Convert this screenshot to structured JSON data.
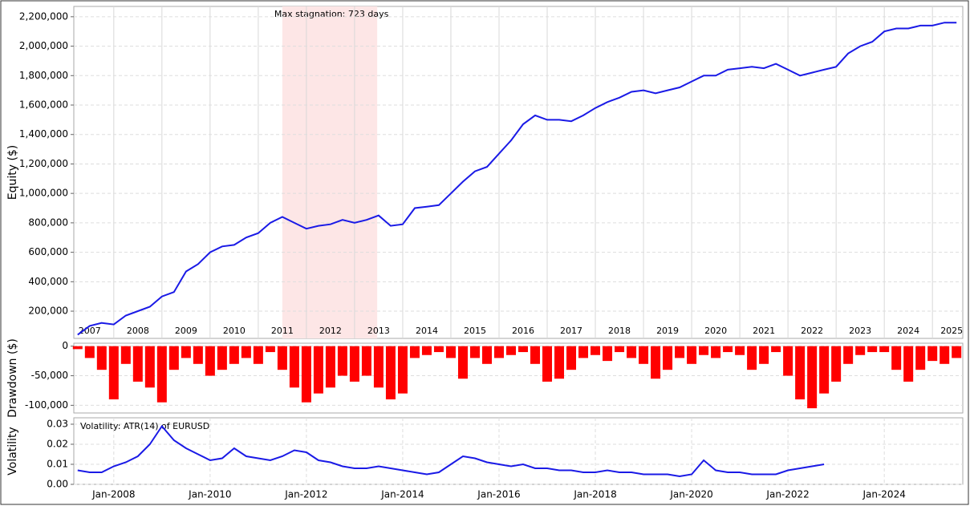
{
  "chart_data": [
    {
      "type": "line",
      "ylabel": "Equity ($)",
      "color": "#1a1ae6",
      "grid": true,
      "xlim": [
        2007.17,
        2025.63
      ],
      "ylim": [
        15000,
        2270000
      ],
      "yticks": [
        {
          "value": 200000,
          "label": "200,000"
        },
        {
          "value": 400000,
          "label": "400,000"
        },
        {
          "value": 600000,
          "label": "600,000"
        },
        {
          "value": 800000,
          "label": "800,000"
        },
        {
          "value": 1000000,
          "label": "1,000,000"
        },
        {
          "value": 1200000,
          "label": "1,200,000"
        },
        {
          "value": 1400000,
          "label": "1,400,000"
        },
        {
          "value": 1600000,
          "label": "1,600,000"
        },
        {
          "value": 1800000,
          "label": "1,800,000"
        },
        {
          "value": 2000000,
          "label": "2,000,000"
        },
        {
          "value": 2200000,
          "label": "2,200,000"
        }
      ],
      "year_lines": [
        2008,
        2009,
        2010,
        2011,
        2012,
        2013,
        2014,
        2015,
        2016,
        2017,
        2018,
        2019,
        2020,
        2021,
        2022,
        2023,
        2024,
        2025
      ],
      "year_labels": [
        {
          "value": 2007.5,
          "label": "2007"
        },
        {
          "value": 2008.5,
          "label": "2008"
        },
        {
          "value": 2009.5,
          "label": "2009"
        },
        {
          "value": 2010.5,
          "label": "2010"
        },
        {
          "value": 2011.5,
          "label": "2011"
        },
        {
          "value": 2012.5,
          "label": "2012"
        },
        {
          "value": 2013.5,
          "label": "2013"
        },
        {
          "value": 2014.5,
          "label": "2014"
        },
        {
          "value": 2015.5,
          "label": "2015"
        },
        {
          "value": 2016.5,
          "label": "2016"
        },
        {
          "value": 2017.5,
          "label": "2017"
        },
        {
          "value": 2018.5,
          "label": "2018"
        },
        {
          "value": 2019.5,
          "label": "2019"
        },
        {
          "value": 2020.5,
          "label": "2020"
        },
        {
          "value": 2021.5,
          "label": "2021"
        },
        {
          "value": 2022.5,
          "label": "2022"
        },
        {
          "value": 2023.5,
          "label": "2023"
        },
        {
          "value": 2024.5,
          "label": "2024"
        },
        {
          "value": 2025.4,
          "label": "2025"
        }
      ],
      "stagnation": {
        "start": 2011.5,
        "end": 2013.47,
        "label": "Max stagnation: 723 days",
        "color": "#fde6e6",
        "label_color": "#f4a0a0"
      },
      "x": [
        2007.25,
        2007.5,
        2007.75,
        2008,
        2008.25,
        2008.5,
        2008.75,
        2009,
        2009.25,
        2009.5,
        2009.75,
        2010,
        2010.25,
        2010.5,
        2010.75,
        2011,
        2011.25,
        2011.5,
        2011.75,
        2012,
        2012.25,
        2012.5,
        2012.75,
        2013,
        2013.25,
        2013.5,
        2013.75,
        2014,
        2014.25,
        2014.5,
        2014.75,
        2015,
        2015.25,
        2015.5,
        2015.75,
        2016,
        2016.25,
        2016.5,
        2016.75,
        2017,
        2017.25,
        2017.5,
        2017.75,
        2018,
        2018.25,
        2018.5,
        2018.75,
        2019,
        2019.25,
        2019.5,
        2019.75,
        2020,
        2020.25,
        2020.5,
        2020.75,
        2021,
        2021.25,
        2021.5,
        2021.75,
        2022,
        2022.25,
        2022.5,
        2022.75,
        2023,
        2023.25,
        2023.5,
        2023.75,
        2024,
        2024.25,
        2024.5,
        2024.75,
        2025,
        2025.25,
        2025.5
      ],
      "values": [
        40000,
        100000,
        120000,
        110000,
        170000,
        200000,
        230000,
        300000,
        330000,
        470000,
        520000,
        600000,
        640000,
        650000,
        700000,
        730000,
        800000,
        840000,
        800000,
        760000,
        780000,
        790000,
        820000,
        800000,
        820000,
        850000,
        780000,
        790000,
        900000,
        910000,
        920000,
        1000000,
        1080000,
        1150000,
        1180000,
        1270000,
        1360000,
        1470000,
        1530000,
        1500000,
        1500000,
        1490000,
        1530000,
        1580000,
        1620000,
        1650000,
        1690000,
        1700000,
        1680000,
        1700000,
        1720000,
        1760000,
        1800000,
        1800000,
        1840000,
        1850000,
        1860000,
        1850000,
        1880000,
        1840000,
        1800000,
        1820000,
        1840000,
        1860000,
        1950000,
        2000000,
        2030000,
        2100000,
        2120000,
        2120000,
        2140000,
        2140000,
        2160000,
        2160000
      ]
    },
    {
      "type": "bar",
      "ylabel": "Drawdown ($)",
      "color": "#ff0000",
      "grid": true,
      "xlim": [
        2007.17,
        2025.63
      ],
      "ylim": [
        -113000,
        5000
      ],
      "yticks": [
        0,
        {
          "value": -50000,
          "label": "-50,000"
        },
        {
          "value": -100000,
          "label": "-100,000"
        }
      ],
      "x": [
        2007.25,
        2007.5,
        2007.75,
        2008,
        2008.25,
        2008.5,
        2008.75,
        2009,
        2009.25,
        2009.5,
        2009.75,
        2010,
        2010.25,
        2010.5,
        2010.75,
        2011,
        2011.25,
        2011.5,
        2011.75,
        2012,
        2012.25,
        2012.5,
        2012.75,
        2013,
        2013.25,
        2013.5,
        2013.75,
        2014,
        2014.25,
        2014.5,
        2014.75,
        2015,
        2015.25,
        2015.5,
        2015.75,
        2016,
        2016.25,
        2016.5,
        2016.75,
        2017,
        2017.25,
        2017.5,
        2017.75,
        2018,
        2018.25,
        2018.5,
        2018.75,
        2019,
        2019.25,
        2019.5,
        2019.75,
        2020,
        2020.25,
        2020.5,
        2020.75,
        2021,
        2021.25,
        2021.5,
        2021.75,
        2022,
        2022.25,
        2022.5,
        2022.75,
        2023,
        2023.25,
        2023.5,
        2023.75,
        2024,
        2024.25,
        2024.5,
        2024.75,
        2025,
        2025.25,
        2025.5
      ],
      "values": [
        -5000,
        -20000,
        -40000,
        -90000,
        -30000,
        -60000,
        -70000,
        -95000,
        -40000,
        -20000,
        -30000,
        -50000,
        -40000,
        -30000,
        -20000,
        -30000,
        -10000,
        -40000,
        -70000,
        -95000,
        -80000,
        -70000,
        -50000,
        -60000,
        -50000,
        -70000,
        -90000,
        -80000,
        -20000,
        -15000,
        -10000,
        -20000,
        -55000,
        -20000,
        -30000,
        -20000,
        -15000,
        -10000,
        -30000,
        -60000,
        -55000,
        -40000,
        -20000,
        -15000,
        -25000,
        -10000,
        -20000,
        -30000,
        -55000,
        -40000,
        -20000,
        -30000,
        -15000,
        -20000,
        -10000,
        -15000,
        -40000,
        -30000,
        -10000,
        -50000,
        -90000,
        -105000,
        -80000,
        -60000,
        -30000,
        -15000,
        -10000,
        -10000,
        -40000,
        -60000,
        -40000,
        -25000,
        -30000,
        -20000
      ]
    },
    {
      "type": "line",
      "ylabel": "Volatility",
      "color": "#1a1ae6",
      "grid": true,
      "annotation": "Volatility: ATR(14) of EURUSD",
      "xlim": [
        2007.17,
        2025.63
      ],
      "ylim": [
        0,
        0.0332
      ],
      "yticks": [
        {
          "value": 0,
          "label": "0.00"
        },
        {
          "value": 0.01,
          "label": "0.01"
        },
        {
          "value": 0.02,
          "label": "0.02"
        },
        {
          "value": 0.03,
          "label": "0.03"
        }
      ],
      "xticks": [
        {
          "value": 2008,
          "label": "Jan-2008"
        },
        {
          "value": 2010,
          "label": "Jan-2010"
        },
        {
          "value": 2012,
          "label": "Jan-2012"
        },
        {
          "value": 2014,
          "label": "Jan-2014"
        },
        {
          "value": 2016,
          "label": "Jan-2016"
        },
        {
          "value": 2018,
          "label": "Jan-2018"
        },
        {
          "value": 2020,
          "label": "Jan-2020"
        },
        {
          "value": 2022,
          "label": "Jan-2022"
        },
        {
          "value": 2024,
          "label": "Jan-2024"
        }
      ],
      "x": [
        2007.25,
        2007.5,
        2007.75,
        2008,
        2008.25,
        2008.5,
        2008.75,
        2009,
        2009.25,
        2009.5,
        2009.75,
        2010,
        2010.25,
        2010.5,
        2010.75,
        2011,
        2011.25,
        2011.5,
        2011.75,
        2012,
        2012.25,
        2012.5,
        2012.75,
        2013,
        2013.25,
        2013.5,
        2013.75,
        2014,
        2014.25,
        2014.5,
        2014.75,
        2015,
        2015.25,
        2015.5,
        2015.75,
        2016,
        2016.25,
        2016.5,
        2016.75,
        2017,
        2017.25,
        2017.5,
        2017.75,
        2018,
        2018.25,
        2018.5,
        2018.75,
        2019,
        2019.25,
        2019.5,
        2019.75,
        2020,
        2020.25,
        2020.5,
        2020.75,
        2021,
        2021.25,
        2021.5,
        2021.75,
        2022,
        2022.25,
        2022.5,
        2022.75
      ],
      "values": [
        0.007,
        0.006,
        0.006,
        0.009,
        0.011,
        0.014,
        0.02,
        0.029,
        0.022,
        0.018,
        0.015,
        0.012,
        0.013,
        0.018,
        0.014,
        0.013,
        0.012,
        0.014,
        0.017,
        0.016,
        0.012,
        0.011,
        0.009,
        0.008,
        0.008,
        0.009,
        0.008,
        0.007,
        0.006,
        0.005,
        0.006,
        0.01,
        0.014,
        0.013,
        0.011,
        0.01,
        0.009,
        0.01,
        0.008,
        0.008,
        0.007,
        0.007,
        0.006,
        0.006,
        0.007,
        0.006,
        0.006,
        0.005,
        0.005,
        0.005,
        0.004,
        0.005,
        0.012,
        0.007,
        0.006,
        0.006,
        0.005,
        0.005,
        0.005,
        0.007,
        0.008,
        0.009,
        0.01
      ]
    }
  ]
}
